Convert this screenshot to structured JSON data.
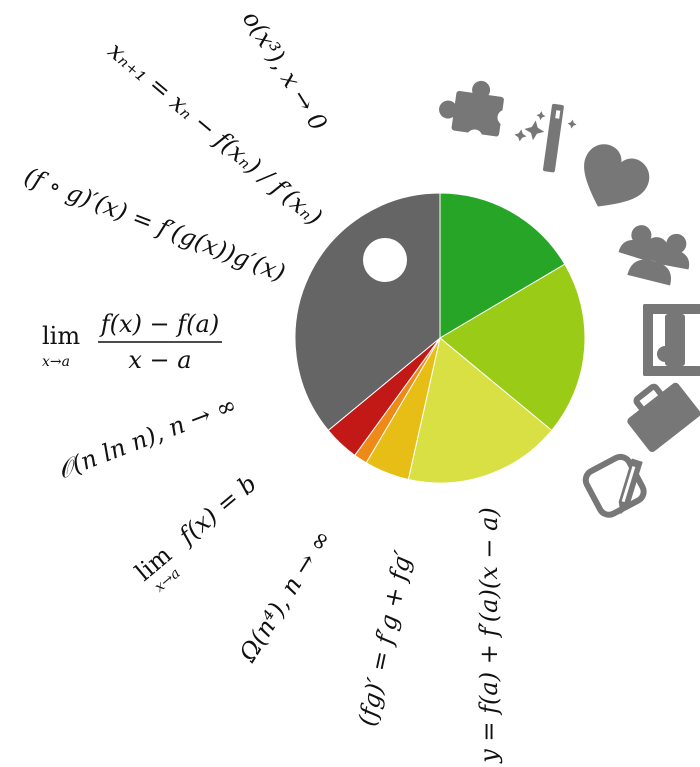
{
  "pie": {
    "slices": [
      {
        "name": "slice-green",
        "value": 16.5,
        "color": "#27a527"
      },
      {
        "name": "slice-lime",
        "value": 19.5,
        "color": "#9acc17"
      },
      {
        "name": "slice-yellow-green",
        "value": 17.5,
        "color": "#d9e044"
      },
      {
        "name": "slice-gold",
        "value": 5,
        "color": "#e6be16"
      },
      {
        "name": "slice-orange",
        "value": 1.5,
        "color": "#ee8a17"
      },
      {
        "name": "slice-red",
        "value": 4,
        "color": "#c21816"
      },
      {
        "name": "slice-gray",
        "value": 36,
        "color": "#656565"
      }
    ]
  },
  "icons": [
    {
      "name": "puzzle-icon",
      "color": "#777777"
    },
    {
      "name": "magic-wand-icon",
      "color": "#777777"
    },
    {
      "name": "heart-icon",
      "color": "#777777"
    },
    {
      "name": "group-icon",
      "color": "#777777"
    },
    {
      "name": "bed-icon",
      "color": "#777777"
    },
    {
      "name": "briefcase-icon",
      "color": "#777777"
    },
    {
      "name": "edit-icon",
      "color": "#777777"
    }
  ],
  "formulas": {
    "little_o": "o(x³), x → 0",
    "newton": "xₙ₊₁ = xₙ − f(xₙ) / f′(xₙ)",
    "chain_rule": "(f ∘ g)′(x) = f′(g(x))g′(x)",
    "derivative_limit_prefix": "lim",
    "derivative_limit_sub": "x→a",
    "derivative_limit_num": "f(x) − f(a)",
    "derivative_limit_den": "x − a",
    "big_o": "𝒪(n ln n), n → ∞",
    "limit_prefix": "lim",
    "limit_sub": "x→a",
    "limit_body": "f(x) = b",
    "big_omega": "Ω(n⁴), n → ∞",
    "product_rule": "(fg)′ = f′g + fg′",
    "tangent": "y = f(a) + f′(a)(x − a)"
  }
}
